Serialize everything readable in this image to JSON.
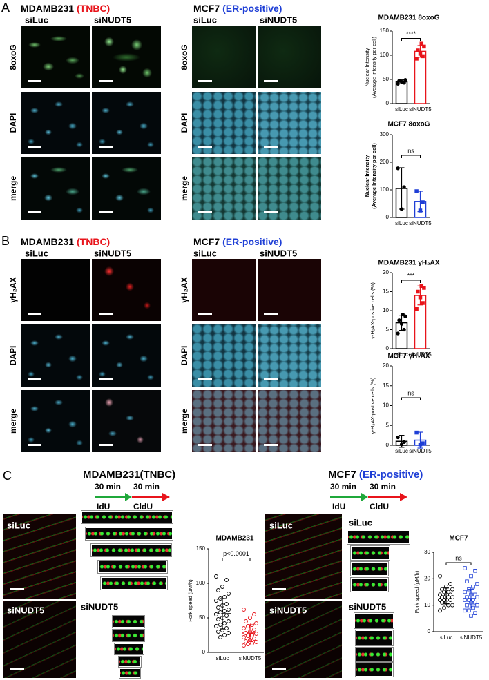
{
  "panels": {
    "A": {
      "letter": "A",
      "left": {
        "cell_line": "MDAMB231",
        "subtype": "(TNBC)",
        "conditions": [
          "siLuc",
          "siNUDT5"
        ],
        "rows": [
          "8oxoG",
          "DAPI",
          "merge"
        ]
      },
      "right": {
        "cell_line": "MCF7",
        "subtype": "(ER-positive)",
        "conditions": [
          "siLuc",
          "siNUDT5"
        ],
        "rows": [
          "8oxoG",
          "DAPI",
          "merge"
        ]
      }
    },
    "B": {
      "letter": "B",
      "left": {
        "cell_line": "MDAMB231",
        "subtype": "(TNBC)",
        "conditions": [
          "siLuc",
          "siNUDT5"
        ],
        "rows": [
          "γH₂AX",
          "DAPI",
          "merge"
        ]
      },
      "right": {
        "cell_line": "MCF7",
        "subtype": "(ER-positive)",
        "conditions": [
          "siLuc",
          "siNUDT5"
        ],
        "rows": [
          "γH₂AX",
          "DAPI",
          "merge"
        ]
      }
    },
    "C": {
      "letter": "C",
      "left": {
        "title": "MDAMB231(TNBC)",
        "durations": [
          "30 min",
          "30 min"
        ],
        "labels": [
          "IdU",
          "CldU"
        ],
        "conditions": [
          "siLuc",
          "siNUDT5"
        ],
        "strip_label": "siNUDT5"
      },
      "right": {
        "cell_line": "MCF7",
        "subtype": "(ER-positive)",
        "durations": [
          "30 min",
          "30 min"
        ],
        "labels": [
          "IdU",
          "CldU"
        ],
        "conditions": [
          "siLuc",
          "siNUDT5"
        ],
        "strip_labels": [
          "siLuc",
          "siNUDT5"
        ]
      }
    }
  },
  "chart_data": [
    {
      "type": "bar",
      "title": "MDAMB231 8oxoG",
      "ylabel": [
        "Nuclear Intensity",
        "(Average Intensity per cell)"
      ],
      "categories": [
        "siLuc",
        "siNUDT5"
      ],
      "colors": [
        "#000000",
        "#e8141b"
      ],
      "markers": [
        "circle",
        "square"
      ],
      "values": [
        45,
        108
      ],
      "errors": [
        4,
        12
      ],
      "points": [
        [
          41,
          43,
          45,
          47,
          49
        ],
        [
          93,
          98,
          103,
          110,
          118,
          124
        ]
      ],
      "ylim": [
        0,
        150
      ],
      "yticks": [
        0,
        50,
        100,
        150
      ],
      "significance": "****"
    },
    {
      "type": "bar",
      "title": "MCF7 8oxoG",
      "ylabel": [
        "Nuclear Intensity",
        "(Average Intensity per cell)"
      ],
      "categories": [
        "siLuc",
        "siNUDT5"
      ],
      "colors": [
        "#000000",
        "#1f3fd6"
      ],
      "markers": [
        "circle",
        "square"
      ],
      "values": [
        105,
        58
      ],
      "errors": [
        75,
        37
      ],
      "points": [
        [
          178,
          110,
          30
        ],
        [
          95,
          55,
          25
        ]
      ],
      "ylim": [
        0,
        300
      ],
      "yticks": [
        0,
        100,
        200,
        300
      ],
      "significance": "ns"
    },
    {
      "type": "bar",
      "title": "MDAMB231 γH₂AX",
      "ylabel": [
        "γ-H₂AX-postive cells (%)"
      ],
      "categories": [
        "siLuc",
        "siNUDT5"
      ],
      "colors": [
        "#000000",
        "#e8141b"
      ],
      "markers": [
        "circle",
        "square"
      ],
      "values": [
        6.8,
        14
      ],
      "errors": [
        2,
        2.5
      ],
      "points": [
        [
          4,
          5,
          6.5,
          7.5,
          8.5,
          9
        ],
        [
          10.5,
          12,
          13.5,
          15,
          16,
          16.5
        ]
      ],
      "ylim": [
        0,
        20
      ],
      "yticks": [
        0,
        5,
        10,
        15,
        20
      ],
      "significance": "***"
    },
    {
      "type": "bar",
      "title": "MCF7 γH₂AX",
      "ylabel": [
        "γ-H₂AX-postive cells (%)"
      ],
      "categories": [
        "siLuc",
        "siNUDT5"
      ],
      "colors": [
        "#000000",
        "#1f3fd6"
      ],
      "markers": [
        "circle",
        "square"
      ],
      "values": [
        1,
        1.3
      ],
      "errors": [
        1.5,
        2
      ],
      "points": [
        [
          2,
          0.8,
          0.2
        ],
        [
          3.2,
          0.5,
          0.2
        ]
      ],
      "ylim": [
        0,
        20
      ],
      "yticks": [
        0,
        5,
        10,
        15,
        20
      ],
      "significance": "ns"
    },
    {
      "type": "dot",
      "title": "MDAMB231",
      "ylabel": [
        "Fork speed (μM/h)"
      ],
      "categories": [
        "siLuc",
        "siNUDT5"
      ],
      "colors": [
        "#000000",
        "#e8141b"
      ],
      "markers": [
        "open-circle",
        "open-circle"
      ],
      "values": [
        56,
        28
      ],
      "errors": [
        22,
        12
      ],
      "points": [
        [
          110,
          105,
          95,
          90,
          85,
          80,
          78,
          75,
          70,
          68,
          65,
          62,
          60,
          58,
          55,
          53,
          50,
          48,
          45,
          42,
          40,
          38,
          35,
          32,
          30,
          28,
          25,
          22
        ],
        [
          62,
          55,
          50,
          45,
          42,
          40,
          38,
          35,
          33,
          30,
          28,
          27,
          25,
          24,
          22,
          20,
          18,
          16,
          15,
          13,
          12,
          10
        ]
      ],
      "ylim": [
        0,
        150
      ],
      "yticks": [
        0,
        50,
        100,
        150
      ],
      "significance": "p<0.0001"
    },
    {
      "type": "dot",
      "title": "MCF7",
      "ylabel": [
        "Fork speed (μM/h)"
      ],
      "categories": [
        "siLuc",
        "siNUDT5"
      ],
      "colors": [
        "#000000",
        "#1f3fd6"
      ],
      "markers": [
        "open-circle",
        "open-square"
      ],
      "values": [
        13.5,
        12.5
      ],
      "errors": [
        3,
        3.5
      ],
      "points": [
        [
          21,
          18,
          17,
          16,
          16,
          15,
          15,
          14,
          14,
          14,
          13,
          13,
          13,
          12,
          12,
          12,
          11,
          11,
          10,
          10,
          9,
          8
        ],
        [
          24,
          23,
          21,
          19,
          18,
          17,
          16,
          15,
          14,
          14,
          13,
          13,
          12,
          12,
          12,
          11,
          11,
          10,
          10,
          9,
          8,
          8,
          7,
          6
        ]
      ],
      "ylim": [
        0,
        30
      ],
      "yticks": [
        0,
        10,
        20,
        30
      ],
      "significance": "ns"
    }
  ]
}
